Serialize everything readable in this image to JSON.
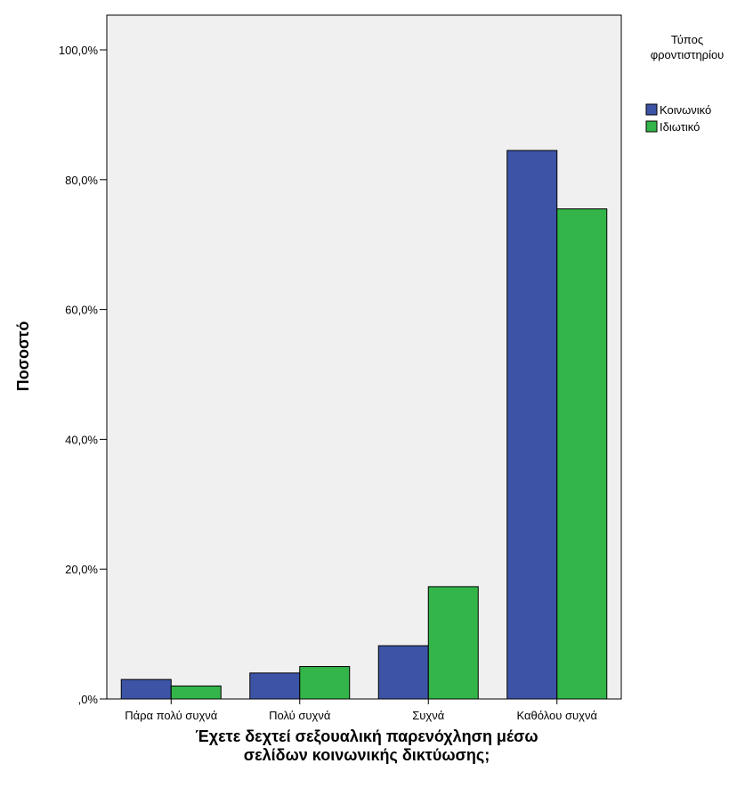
{
  "chart_data": {
    "type": "bar",
    "xlabel_lines": [
      "Έχετε δεχτεί σεξουαλική παρενόχληση μέσω",
      "σελίδων κοινωνικής δικτύωσης;"
    ],
    "ylabel": "Ποσοστό",
    "categories": [
      "Πάρα πολύ συχνά",
      "Πολύ συχνά",
      "Συχνά",
      "Καθόλου συχνά"
    ],
    "series": [
      {
        "name": "Κοινωνικό",
        "color": "#3D54A6",
        "values": [
          3.0,
          4.0,
          8.2,
          84.5
        ]
      },
      {
        "name": "Ιδιωτικό",
        "color": "#33B549",
        "values": [
          2.0,
          5.0,
          17.3,
          75.5
        ]
      }
    ],
    "ylim": [
      0,
      100
    ],
    "yticks": [
      0,
      20,
      40,
      60,
      80,
      100
    ],
    "ytick_labels": [
      ",0%",
      "20,0%",
      "40,0%",
      "60,0%",
      "80,0%",
      "100,0%"
    ],
    "legend": {
      "title_lines": [
        "Τύπος",
        "φροντιστηρίου"
      ],
      "placement": "top-right"
    },
    "plot_background": "#F0F0F0",
    "grid": false
  }
}
